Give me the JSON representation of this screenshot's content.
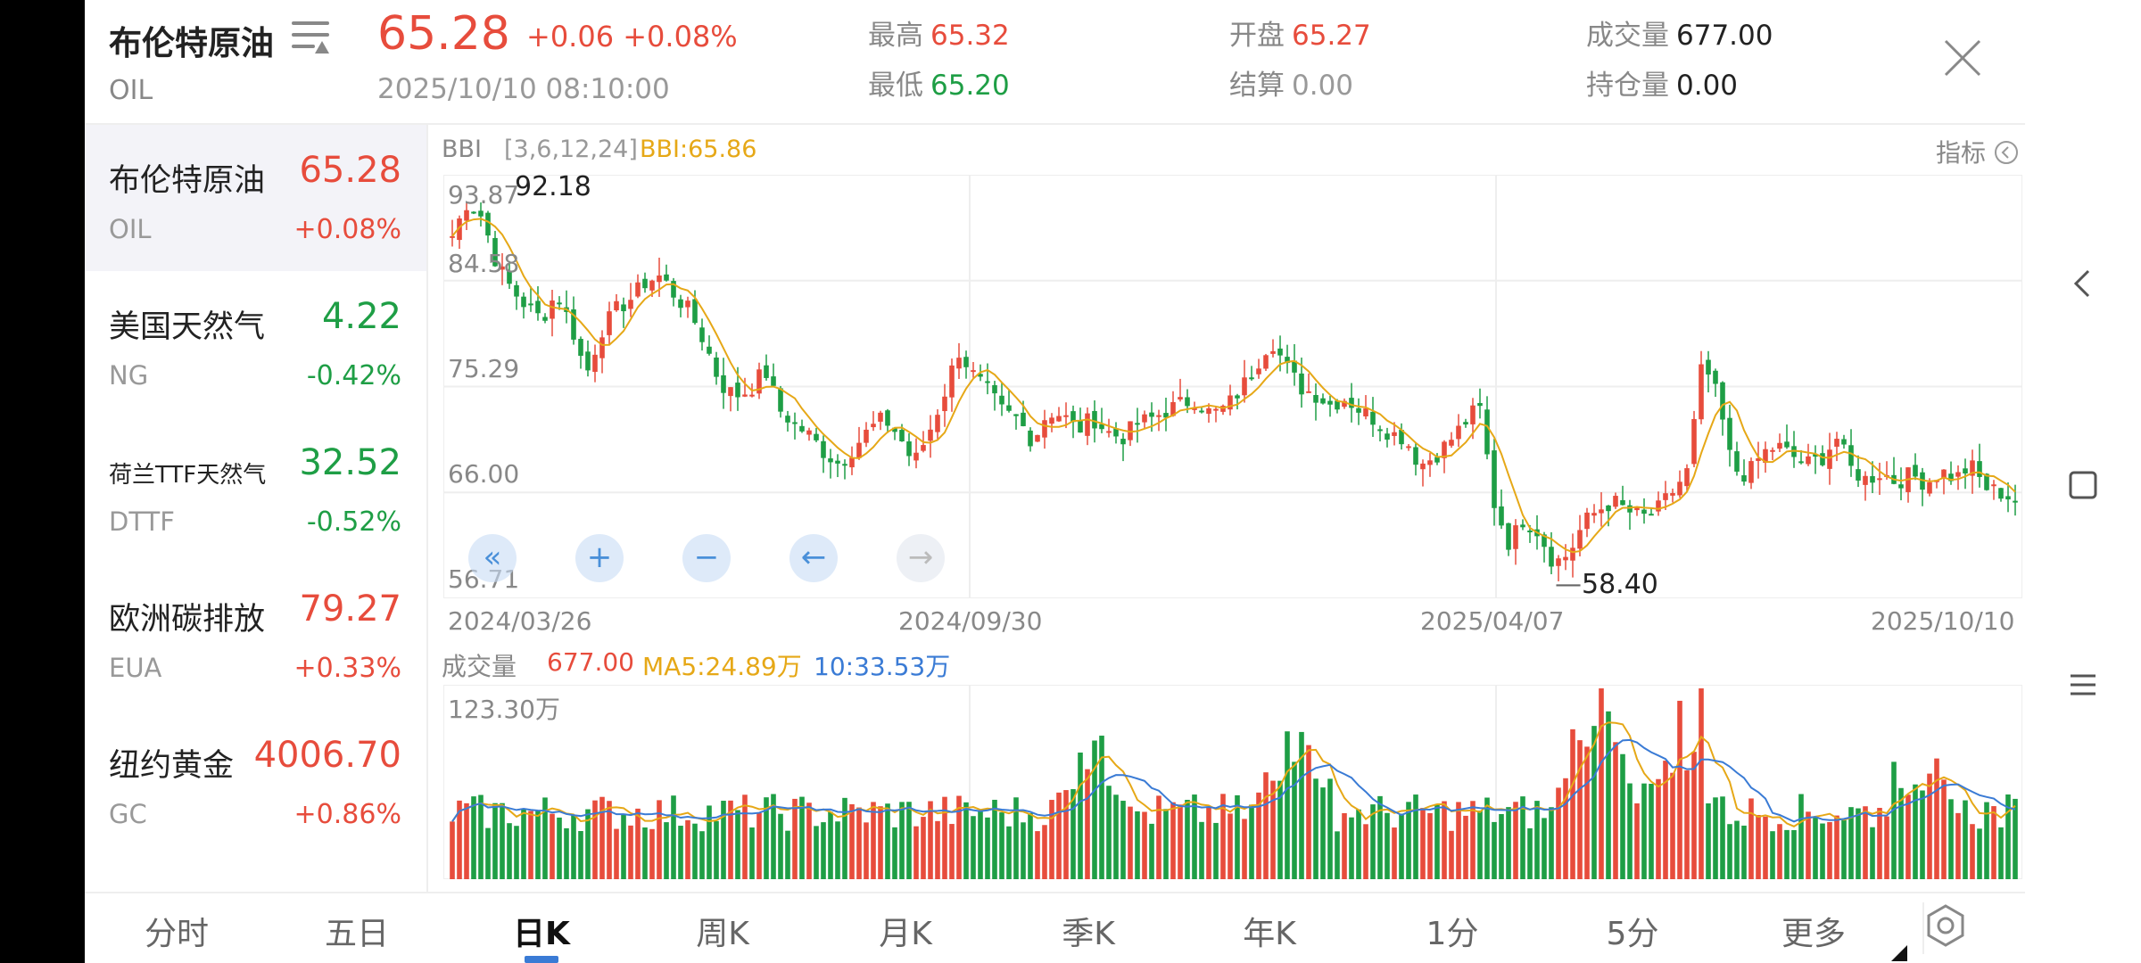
{
  "header": {
    "name": "布伦特原油",
    "code": "OIL",
    "price": "65.28",
    "change": "+0.06 +0.08%",
    "time": "2025/10/10 08:10:00",
    "stats": [
      {
        "label": "最高",
        "value": "65.32",
        "tone": "up"
      },
      {
        "label": "最低",
        "value": "65.20",
        "tone": "down"
      },
      {
        "label": "开盘",
        "value": "65.27",
        "tone": "up"
      },
      {
        "label": "结算",
        "value": "0.00",
        "tone": "flat"
      },
      {
        "label": "成交量",
        "value": "677.00",
        "tone": "dark"
      },
      {
        "label": "持仓量",
        "value": "0.00",
        "tone": "dark"
      }
    ]
  },
  "watchlist": [
    {
      "name": "布伦特原油",
      "code": "OIL",
      "price": "65.28",
      "pct": "+0.08%",
      "dir": "up"
    },
    {
      "name": "美国天然气",
      "code": "NG",
      "price": "4.22",
      "pct": "-0.42%",
      "dir": "down"
    },
    {
      "name": "荷兰TTF天然气",
      "code": "DTTF",
      "price": "32.52",
      "pct": "-0.52%",
      "dir": "down"
    },
    {
      "name": "欧洲碳排放",
      "code": "EUA",
      "price": "79.27",
      "pct": "+0.33%",
      "dir": "up"
    },
    {
      "name": "纽约黄金",
      "code": "GC",
      "price": "4006.70",
      "pct": "+0.86%",
      "dir": "up"
    }
  ],
  "indicator": {
    "name": "BBI",
    "params": "[3,6,12,24]",
    "value": "BBI:65.86",
    "button": "指标"
  },
  "kline": {
    "y_labels": [
      "93.87",
      "84.58",
      "75.29",
      "66.00",
      "56.71"
    ],
    "x_labels": [
      "2024/03/26",
      "2024/09/30",
      "2025/04/07",
      "2025/10/10"
    ],
    "high_mark": "92.18",
    "low_mark": "58.40"
  },
  "volume": {
    "label": "成交量",
    "value": "677.00",
    "ma5": "MA5:24.89万",
    "ma10": "10:33.53万",
    "max_label": "123.30万"
  },
  "zoom_buttons": [
    "«",
    "+",
    "−",
    "←",
    "→"
  ],
  "tabs": [
    "分时",
    "五日",
    "日K",
    "周K",
    "月K",
    "季K",
    "年K",
    "1分",
    "5分",
    "更多"
  ],
  "active_tab": "日K",
  "colors": {
    "up": "#e74c3c",
    "down": "#1e9e45",
    "ma_yellow": "#e6a817",
    "ma_blue": "#3a7bd5"
  },
  "chart_data": {
    "type": "candlestick",
    "ylim": [
      56.71,
      93.87
    ],
    "close_path": [
      88.5,
      91.5,
      90.2,
      86.0,
      83.8,
      82.3,
      81.2,
      83.5,
      80.6,
      76.3,
      80.2,
      82.0,
      83.0,
      84.5,
      85.0,
      83.2,
      81.8,
      79.0,
      75.5,
      74.5,
      75.0,
      76.8,
      73.2,
      72.0,
      71.0,
      69.5,
      68.5,
      70.0,
      71.5,
      72.5,
      71.0,
      68.5,
      71.2,
      74.5,
      78.5,
      76.3,
      74.8,
      73.0,
      72.4,
      70.5,
      73.1,
      72.8,
      71.4,
      72.6,
      71.3,
      70.8,
      72.0,
      72.5,
      73.2,
      73.8,
      74.2,
      72.8,
      73.5,
      75.1,
      77.2,
      79.5,
      77.0,
      75.2,
      74.6,
      73.7,
      74.3,
      73.2,
      72.4,
      71.2,
      70.8,
      68.4,
      69.2,
      70.5,
      72.1,
      73.6,
      65.0,
      61.5,
      63.8,
      62.5,
      59.8,
      60.6,
      63.3,
      64.5,
      65.2,
      64.3,
      63.8,
      64.5,
      66.1,
      67.9,
      77.5,
      74.3,
      68.1,
      67.5,
      69.4,
      70.1,
      69.2,
      68.5,
      69.0,
      70.8,
      68.0,
      67.1,
      67.8,
      66.9,
      67.6,
      66.8,
      67.9,
      67.2,
      68.4,
      66.4,
      66.0,
      65.3
    ],
    "bbi_label": "BBI:65.86",
    "period_high": 92.18,
    "period_low": 58.4,
    "x_labels": [
      "2024/03/26",
      "2024/09/30",
      "2025/04/07",
      "2025/10/10"
    ]
  }
}
